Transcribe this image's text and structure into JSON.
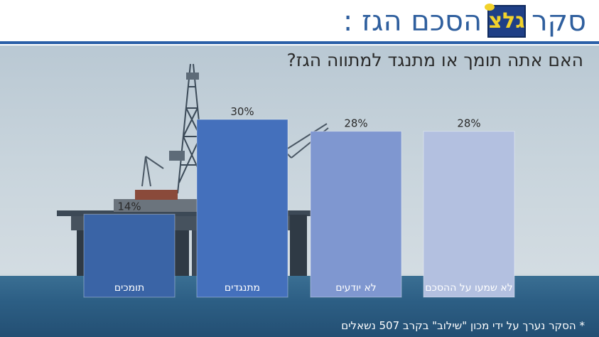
{
  "header": {
    "title_word_survey": "סקר",
    "logo_text": "גלצ",
    "title_rest": ": הסכם הגז"
  },
  "question": "האם אתה תומך או מתנגד למתווה הגז?",
  "footnote": "* הסקר נערך על ידי מכון \"שילוב\" בקרב 507 נשאלים",
  "colors": {
    "header_text": "#2f5f9e",
    "header_rule": "#2b5fa8",
    "logo_bg": "#1f3f86",
    "logo_text": "#f2d22b"
  },
  "chart_data": {
    "type": "bar",
    "categories": [
      "תומכים",
      "מתנגדים",
      "לא יודעים",
      "לא שמעו על ההסכם"
    ],
    "values": [
      14,
      30,
      28,
      28
    ],
    "value_labels": [
      "14%",
      "30%",
      "28%",
      "28%"
    ],
    "unit": "%",
    "bar_colors": [
      "#3a64a6",
      "#4470bc",
      "#7f97d0",
      "#b3c0e0"
    ],
    "ylim": [
      0,
      30
    ],
    "grid": false,
    "legend": "none"
  }
}
